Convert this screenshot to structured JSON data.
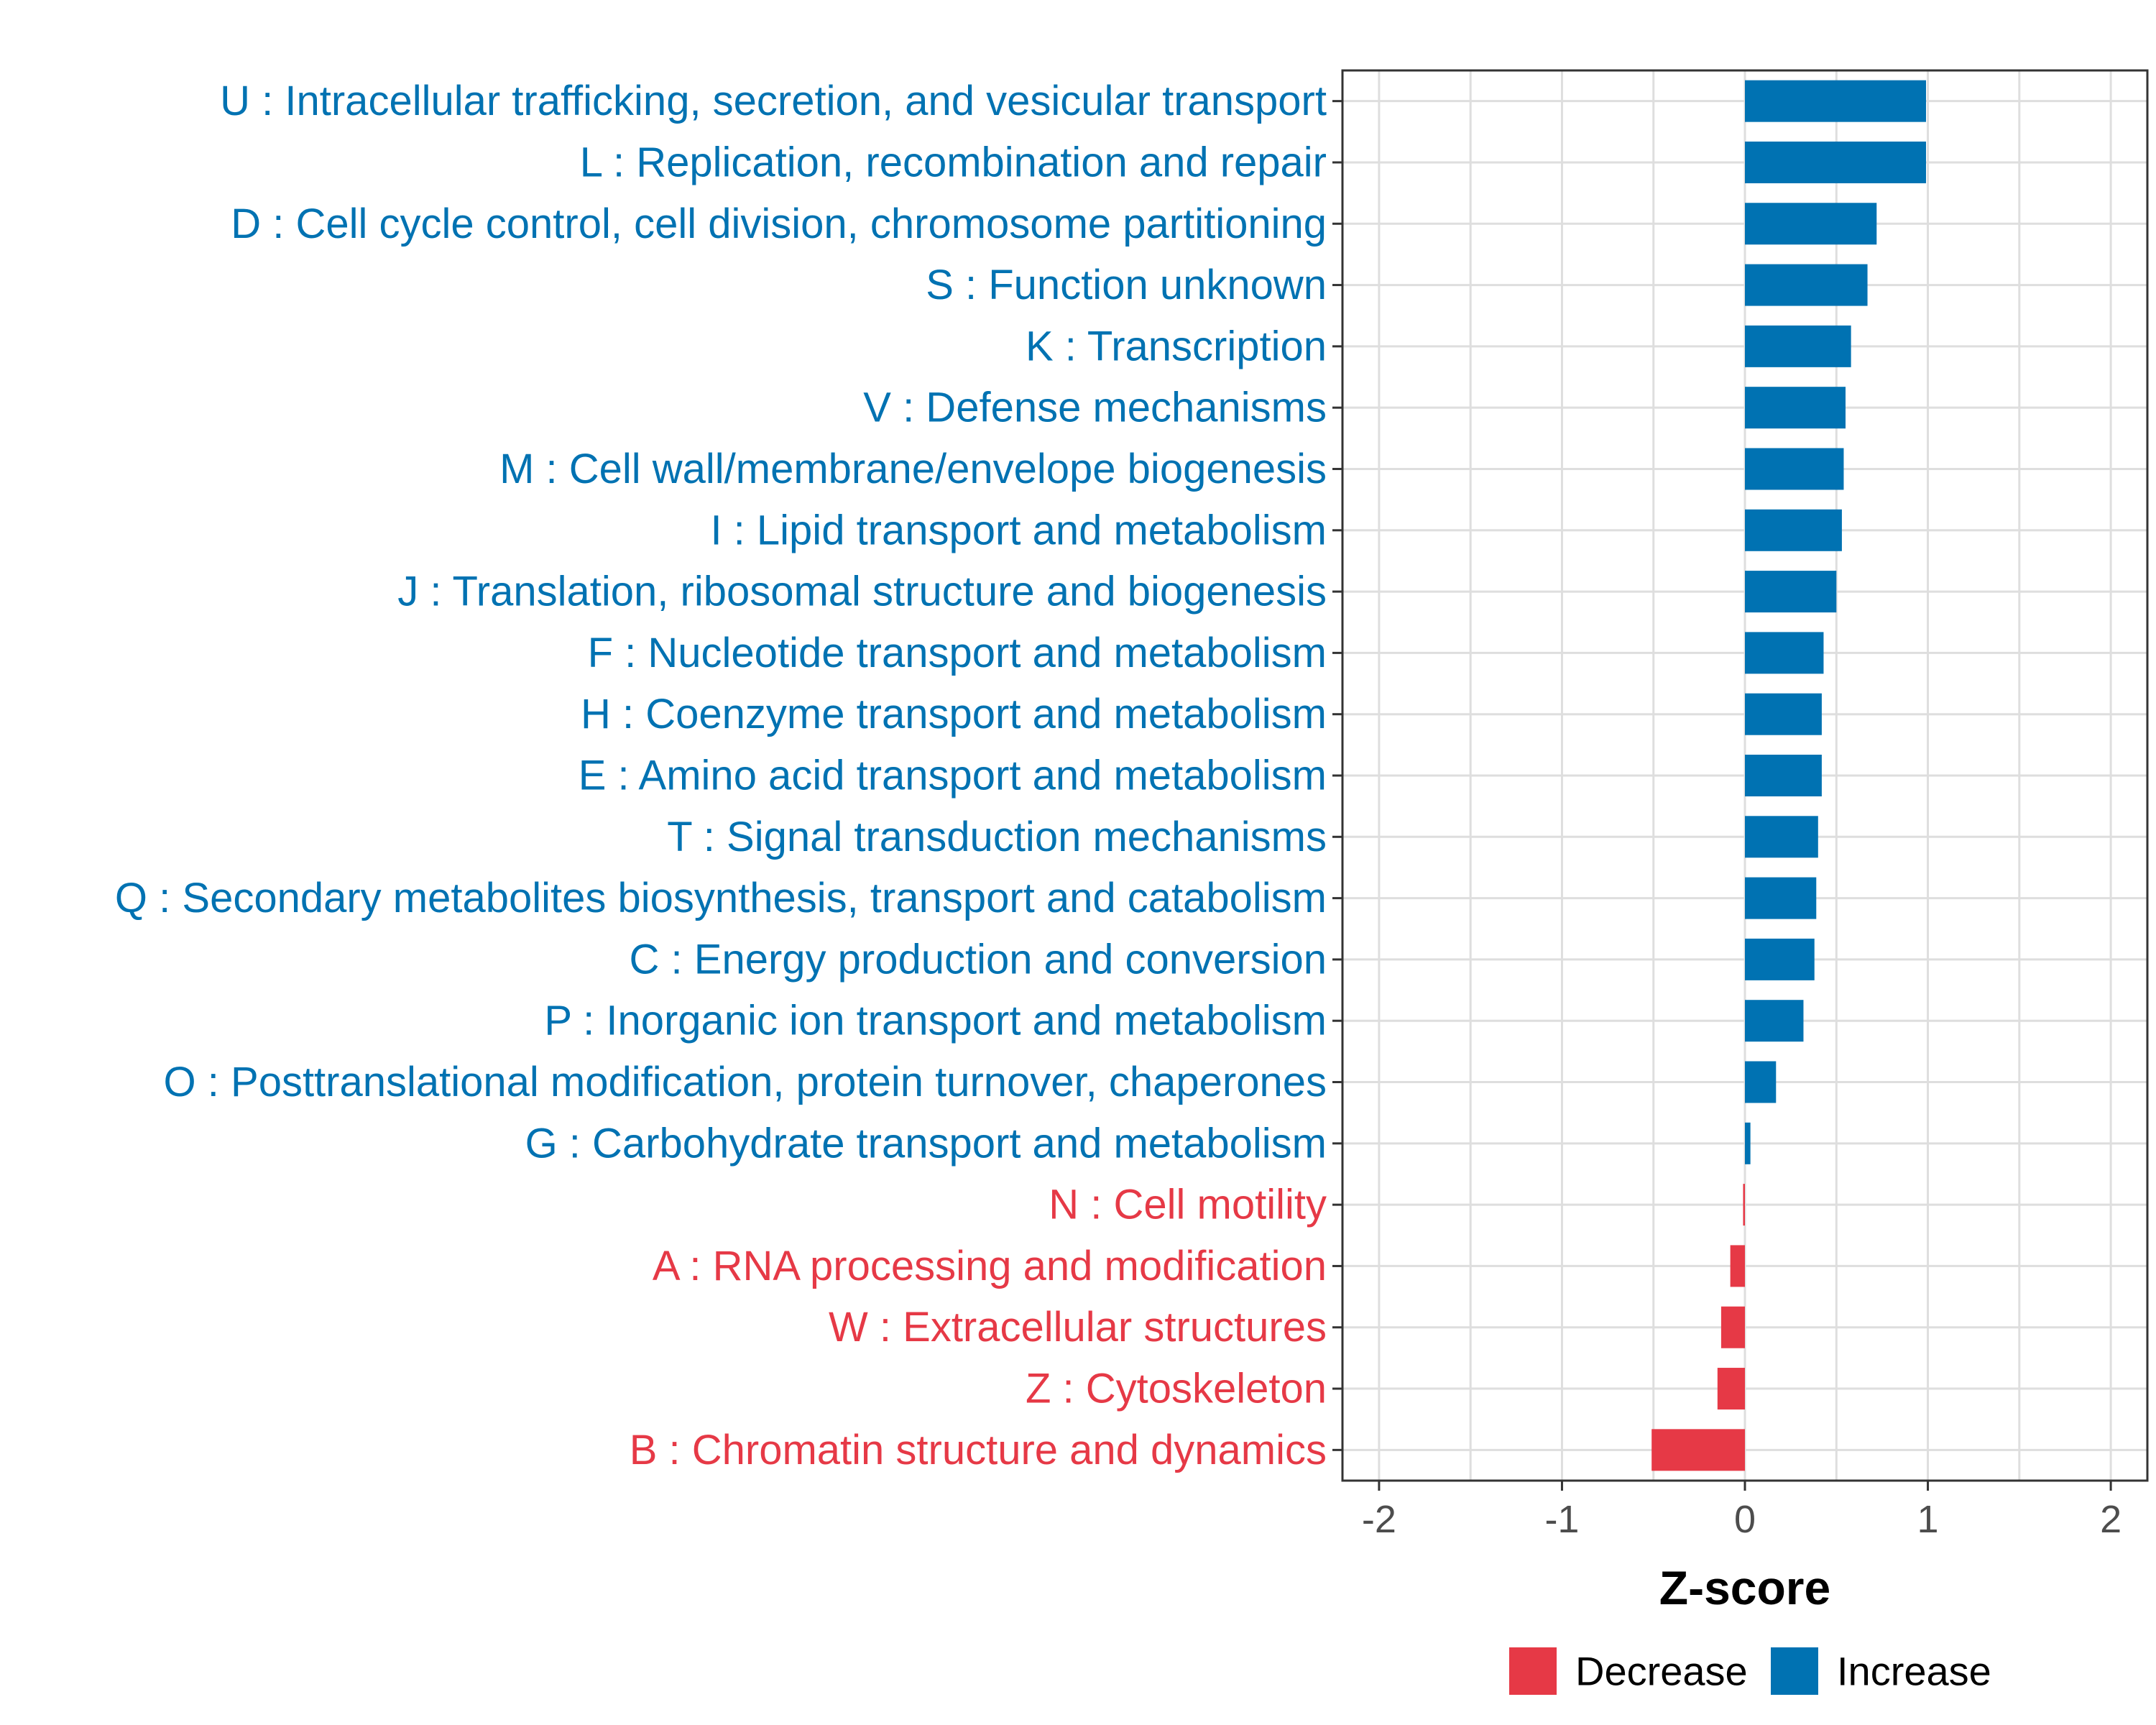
{
  "chart_data": {
    "type": "bar",
    "orientation": "horizontal",
    "xlabel": "Z-score",
    "ylabel": "",
    "xlim": [
      -2.2,
      2.2
    ],
    "xticks": [
      -2,
      -1,
      0,
      1,
      2
    ],
    "xtick_labels": [
      "-2",
      "-1",
      "0",
      "1",
      "2"
    ],
    "grid": true,
    "legend_position": "bottom",
    "colors": {
      "Decrease": "#e63946",
      "Increase": "#0072b2"
    },
    "legend": [
      {
        "label": "Decrease",
        "color": "#e63946"
      },
      {
        "label": "Increase",
        "color": "#0072b2"
      }
    ],
    "categories": [
      "U : Intracellular trafficking, secretion, and vesicular transport",
      "L : Replication, recombination and repair",
      "D : Cell cycle control, cell division, chromosome partitioning",
      "S : Function unknown",
      "K : Transcription",
      "V : Defense mechanisms",
      "M : Cell wall/membrane/envelope biogenesis",
      "I : Lipid transport and metabolism",
      "J : Translation, ribosomal structure and biogenesis",
      "F : Nucleotide transport and metabolism",
      "H : Coenzyme transport and metabolism",
      "E : Amino acid transport and metabolism",
      "T : Signal transduction mechanisms",
      "Q : Secondary metabolites biosynthesis, transport and catabolism",
      "C : Energy production and conversion",
      "P : Inorganic ion transport and metabolism",
      "O : Posttranslational modification, protein turnover, chaperones",
      "G : Carbohydrate transport and metabolism",
      "N : Cell motility",
      "A : RNA processing and modification",
      "W : Extracellular structures",
      "Z : Cytoskeleton",
      "B : Chromatin structure and dynamics"
    ],
    "values": [
      0.99,
      0.99,
      0.72,
      0.67,
      0.58,
      0.55,
      0.54,
      0.53,
      0.5,
      0.43,
      0.42,
      0.42,
      0.4,
      0.39,
      0.38,
      0.32,
      0.17,
      0.03,
      -0.01,
      -0.08,
      -0.13,
      -0.15,
      -0.51
    ],
    "direction": [
      "Increase",
      "Increase",
      "Increase",
      "Increase",
      "Increase",
      "Increase",
      "Increase",
      "Increase",
      "Increase",
      "Increase",
      "Increase",
      "Increase",
      "Increase",
      "Increase",
      "Increase",
      "Increase",
      "Increase",
      "Increase",
      "Decrease",
      "Decrease",
      "Decrease",
      "Decrease",
      "Decrease"
    ]
  }
}
